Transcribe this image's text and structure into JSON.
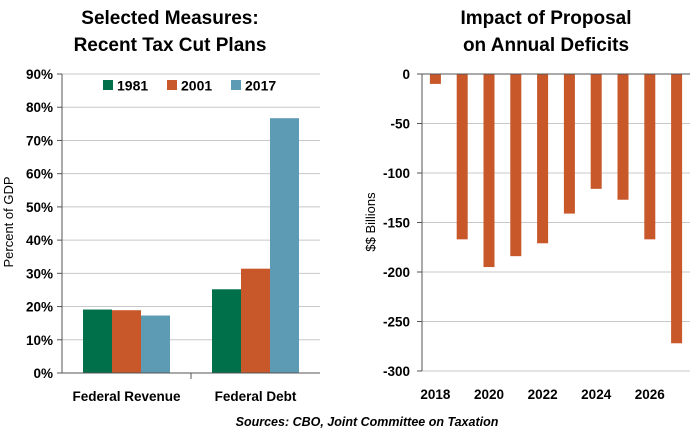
{
  "chart_data": [
    {
      "type": "bar",
      "title": "Selected Measures:",
      "subtitle": "Recent Tax Cut Plans",
      "xlabel": "",
      "ylabel": "Percent of GDP",
      "categories": [
        "Federal Revenue",
        "Federal Debt"
      ],
      "series": [
        {
          "name": "1981",
          "color": "#00704a",
          "values": [
            19.1,
            25.2
          ]
        },
        {
          "name": "2001",
          "color": "#c8572a",
          "values": [
            18.9,
            31.4
          ]
        },
        {
          "name": "2017",
          "color": "#5d9bb4",
          "values": [
            17.3,
            76.7
          ]
        }
      ],
      "ylim": [
        0,
        90
      ],
      "yticks": [
        0,
        10,
        20,
        30,
        40,
        50,
        60,
        70,
        80,
        90
      ],
      "ytick_labels": [
        "0%",
        "10%",
        "20%",
        "30%",
        "40%",
        "50%",
        "60%",
        "70%",
        "80%",
        "90%"
      ],
      "grid": true,
      "legend": "top-center"
    },
    {
      "type": "bar",
      "title": "Impact of Proposal",
      "subtitle": "on Annual Deficits",
      "xlabel": "",
      "ylabel": "$$ Billions",
      "color": "#c8572a",
      "x": [
        2018,
        2019,
        2020,
        2021,
        2022,
        2023,
        2024,
        2025,
        2026,
        2027
      ],
      "values": [
        -10,
        -167,
        -195,
        -184,
        -171,
        -141,
        -116,
        -127,
        -167,
        -272
      ],
      "xtick_labels": [
        "2018",
        "2020",
        "2022",
        "2024",
        "2026"
      ],
      "ylim": [
        -300,
        0
      ],
      "yticks": [
        0,
        -50,
        -100,
        -150,
        -200,
        -250,
        -300
      ],
      "ytick_labels": [
        "0",
        "-50",
        "-100",
        "-150",
        "-200",
        "-250",
        "-300"
      ],
      "grid": true
    }
  ],
  "source": "Sources: CBO, Joint Committee on Taxation"
}
